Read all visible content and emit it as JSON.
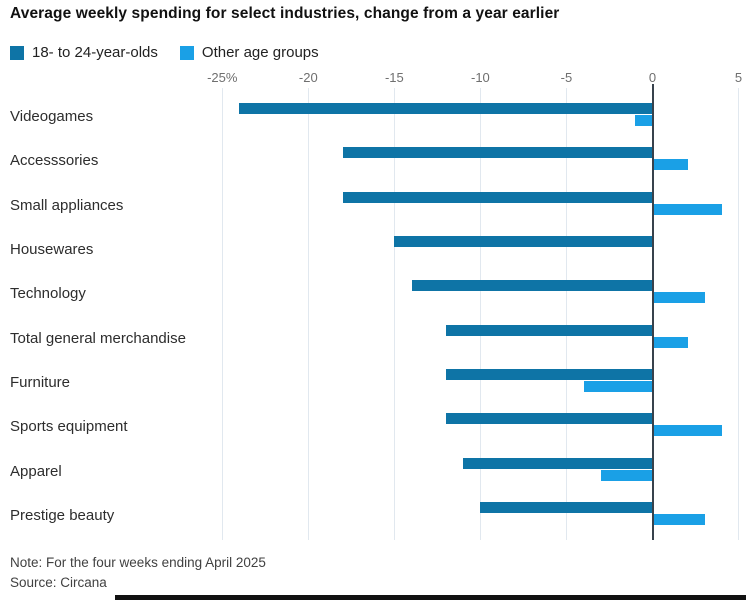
{
  "title": "Average weekly spending for select industries, change from a year earlier",
  "legend": [
    {
      "label": "18- to 24-year-olds",
      "color": "#0e74a6"
    },
    {
      "label": "Other age groups",
      "color": "#1aa0e6"
    }
  ],
  "note": "Note: For the four weeks ending April 2025",
  "source": "Source: Circana",
  "chart_data": {
    "type": "bar",
    "orientation": "horizontal",
    "title": "Average weekly spending for select industries, change from a year earlier",
    "categories": [
      "Videogames",
      "Accesssories",
      "Small appliances",
      "Housewares",
      "Technology",
      "Total general merchandise",
      "Furniture",
      "Sports equipment",
      "Apparel",
      "Prestige beauty"
    ],
    "series": [
      {
        "name": "18- to 24-year-olds",
        "color": "#0e74a6",
        "values": [
          -24,
          -18,
          -18,
          -15,
          -14,
          -12,
          -12,
          -12,
          -11,
          -10
        ]
      },
      {
        "name": "Other age groups",
        "color": "#1aa0e6",
        "values": [
          -1,
          2,
          4,
          0,
          3,
          2,
          -4,
          4,
          -3,
          3
        ]
      }
    ],
    "xlim": [
      -25,
      5
    ],
    "xticks": [
      -25,
      -20,
      -15,
      -10,
      -5,
      0,
      5
    ],
    "xtick_labels": [
      "-25%",
      "-20",
      "-15",
      "-10",
      "-5",
      "0",
      "5"
    ],
    "unit": "percent change",
    "grid": true,
    "legend_position": "top-left"
  }
}
